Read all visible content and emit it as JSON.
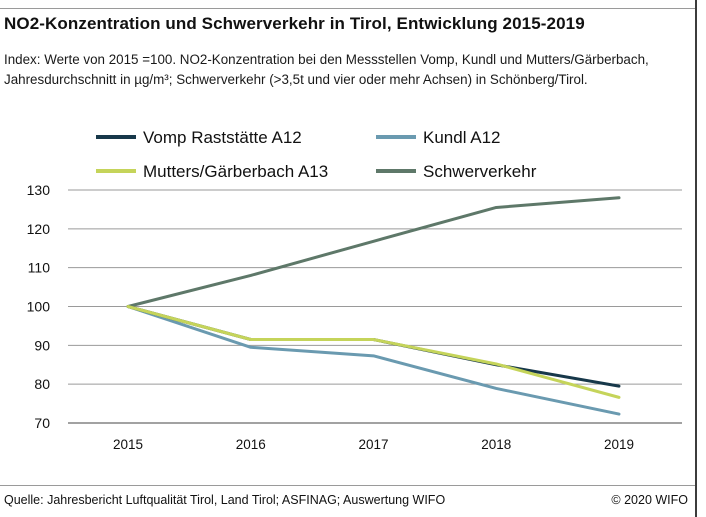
{
  "header": {
    "title": "NO2-Konzentration und Schwerverkehr in Tirol, Entwicklung 2015-2019",
    "subtitle": "Index: Werte von 2015 =100.  NO2-Konzentration bei den Messstellen Vomp, Kundl und Mutters/Gärberbach, Jahresdurchschnitt in µg/m³; Schwerverkehr (>3,5t und vier oder mehr Achsen) in Schönberg/Tirol."
  },
  "footer": {
    "source": "Quelle: Jahresbericht Luftqualität Tirol, Land Tirol; ASFINAG; Auswertung WIFO",
    "copyright": "© 2020 WIFO"
  },
  "chart_data": {
    "type": "line",
    "x": [
      "2015",
      "2016",
      "2017",
      "2018",
      "2019"
    ],
    "ylim": [
      70,
      130
    ],
    "yticks": [
      70,
      80,
      90,
      100,
      110,
      120,
      130
    ],
    "grid": true,
    "legend_position": "top",
    "series": [
      {
        "name": "Vomp Raststätte A12",
        "color": "#17384a",
        "values": [
          100,
          91.5,
          91.5,
          85,
          79.5
        ]
      },
      {
        "name": "Kundl A12",
        "color": "#6a9ab0",
        "values": [
          100,
          89.5,
          87.3,
          78.9,
          72.3
        ]
      },
      {
        "name": "Mutters/Gärberbach A13",
        "color": "#c5d45a",
        "values": [
          100,
          91.5,
          91.5,
          85.2,
          76.6
        ]
      },
      {
        "name": "Schwerverkehr",
        "color": "#5e7869",
        "values": [
          100,
          108,
          116.8,
          125.5,
          128
        ]
      }
    ]
  }
}
